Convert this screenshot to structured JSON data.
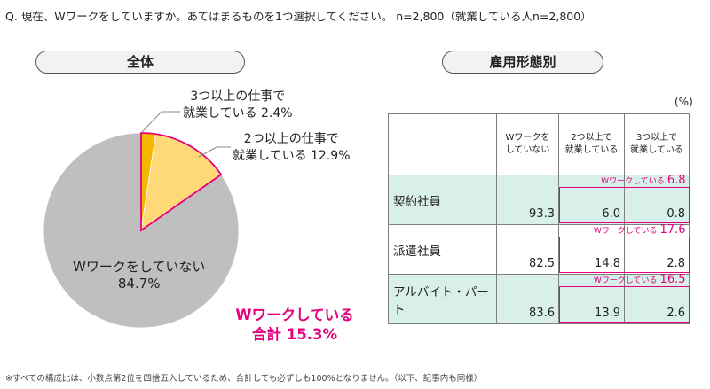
{
  "question": "Q.  現在、Wワークをしていますか。あてはまるものを1つ選択してください。   n=2,800（就業している人n=2,800）",
  "sections": {
    "overall": "全体",
    "by_employment": "雇用形態別"
  },
  "pie_labels": {
    "three_plus": [
      "3つ以上の仕事で",
      "就業している  2.4%"
    ],
    "two_plus": [
      "2つ以上の仕事で",
      "就業している  12.9%"
    ],
    "none": [
      "Wワークをしていない",
      "84.7%"
    ],
    "total": [
      "Wワークしている",
      "合計 15.3%"
    ]
  },
  "colors": {
    "three_plus": "#f5b800",
    "two_plus": "#ffd878",
    "none": "#bfbfbf",
    "highlight": "#e4007f",
    "table_shade": "#d9f0ea"
  },
  "unit": "(%)",
  "chart_data": [
    {
      "type": "pie",
      "title": "全体",
      "categories": [
        "3つ以上の仕事で就業している",
        "2つ以上の仕事で就業している",
        "Wワークをしていない"
      ],
      "values": [
        2.4,
        12.9,
        84.7
      ],
      "annotation": "Wワークしている合計 15.3%"
    },
    {
      "type": "table",
      "title": "雇用形態別",
      "columns": [
        "",
        "Wワークを\nしていない",
        "2つ以上で\n就業している",
        "3つ以上で\n就業している"
      ],
      "rows": [
        {
          "name": "契約社員",
          "values": [
            "93.3",
            "6.0",
            "0.8"
          ],
          "wwork_label": "Wワークしている",
          "wwork_total": "6.8"
        },
        {
          "name": "派遣社員",
          "values": [
            "82.5",
            "14.8",
            "2.8"
          ],
          "wwork_label": "Wワークしている",
          "wwork_total": "17.6"
        },
        {
          "name": "アルバイト・パート",
          "values": [
            "83.6",
            "13.9",
            "2.6"
          ],
          "wwork_label": "Wワークしている",
          "wwork_total": "16.5"
        }
      ]
    }
  ],
  "footnote": "※すべての構成比は、小数点第2位を四捨五入しているため、合計しても必ずしも100%となりません。（以下、記事内も同様）"
}
